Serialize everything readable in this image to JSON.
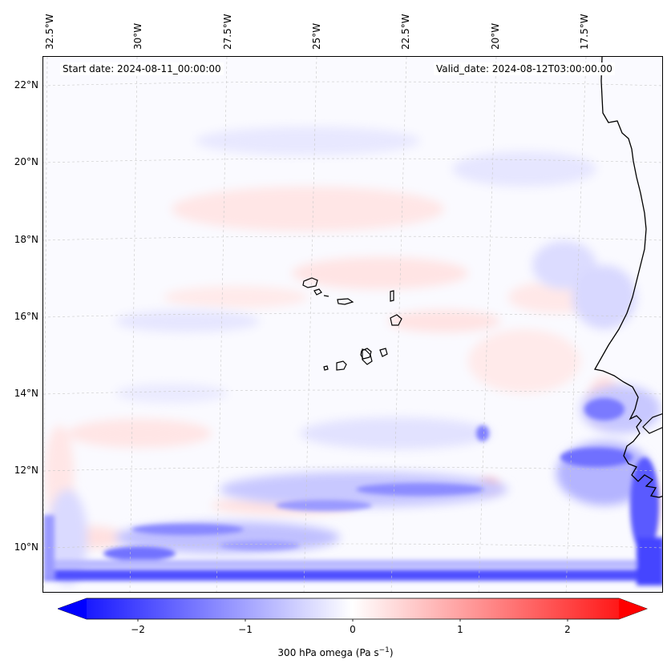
{
  "map": {
    "header": {
      "start_date": "Start date: 2024-08-11_00:00:00",
      "valid_date": "Valid_date: 2024-08-12T03:00:00.00"
    },
    "lon_labels": [
      "32.5°W",
      "30°W",
      "27.5°W",
      "25°W",
      "22.5°W",
      "20°W",
      "17.5°W"
    ],
    "lat_labels": [
      "22°N",
      "20°N",
      "18°N",
      "16°N",
      "14°N",
      "12°N",
      "10°N"
    ],
    "region": "Cabo Verde islands and West African coast"
  },
  "colorbar": {
    "ticks": [
      "−2",
      "−1",
      "0",
      "1",
      "2"
    ],
    "label": "300 hPa omega (Pa s",
    "label_sup": "−1",
    "label_close": ")",
    "range": [
      -2.6,
      2.6
    ],
    "min_color": "#0000ff",
    "mid_color": "#ffffff",
    "max_color": "#ff0000"
  }
}
